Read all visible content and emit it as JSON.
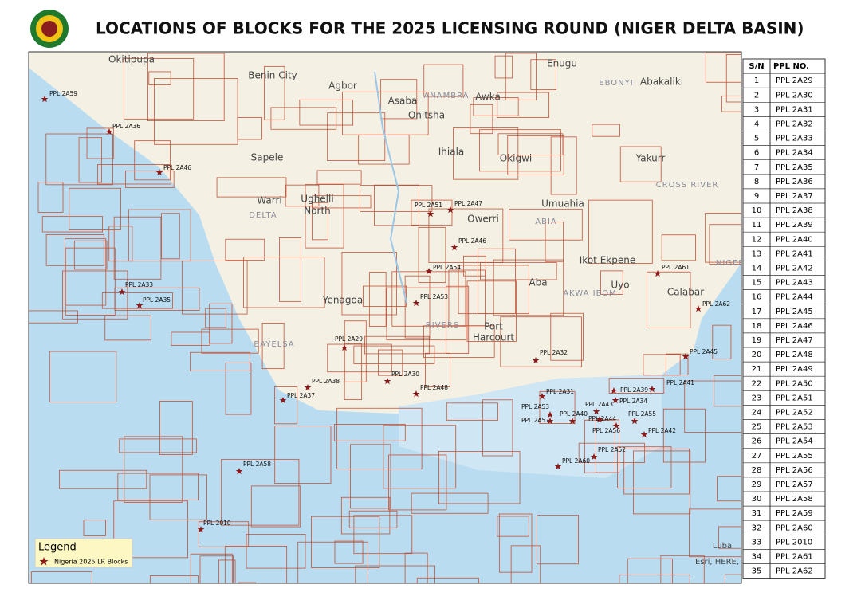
{
  "header": {
    "title": "LOCATIONS OF BLOCKS FOR THE 2025 LICENSING ROUND (NIGER DELTA BASIN)"
  },
  "map": {
    "places": [
      "Okitipupa",
      "Benin City",
      "Agbor",
      "Asaba",
      "Onitsha",
      "Awka",
      "Enugu",
      "Abakaliki",
      "Sapele",
      "Warri",
      "Ughelli",
      "North",
      "Ihiala",
      "Okigwi",
      "Yakurr",
      "Owerri",
      "Umuahia",
      "Ikot Ekpene",
      "Uyo",
      "Calabar",
      "Aba",
      "Yenagoa",
      "Port",
      "Harcourt",
      "DELTA",
      "CROSS RIVER",
      "RIVERS",
      "ABIA",
      "AKWA IBOM",
      "ANAMBRA",
      "EBONYI",
      "BAYELSA",
      "NIGERIA",
      "Luba",
      "Esri, HERE, G"
    ],
    "blocks": [
      "PPL 2A59",
      "PPL 2A36",
      "PPL 2A46",
      "PPL 2A51",
      "PPL 2A47",
      "PPL 2A46",
      "PPL 2A54",
      "PPL 2A33",
      "PPL 2A35",
      "PPL 2A53",
      "PPL 2A29",
      "PPL 2A32",
      "PPL 2A30",
      "PPL 2A38",
      "PPL 2A37",
      "PPL 2A48",
      "PPL 2A31",
      "PPL 2A39",
      "PPL 2A34",
      "PPL 2A41",
      "PPL 2A43",
      "PPL 2A53",
      "PPL 2A40",
      "PPL 2A57",
      "PPL 2A44",
      "PPL 2A55",
      "PPL 2A56",
      "PPL 2A42",
      "PPL 2A52",
      "PPL 2A60",
      "PPL 2A58",
      "PPL 2010",
      "PPL 2A61",
      "PPL 2A62",
      "PPL 2A45"
    ],
    "legend": {
      "title": "Legend",
      "item": "Nigeria 2025 LR Blocks"
    }
  },
  "table": {
    "columns": [
      "S/N",
      "PPL NO."
    ],
    "rows": [
      [
        "1",
        "PPL 2A29"
      ],
      [
        "2",
        "PPL 2A30"
      ],
      [
        "3",
        "PPL 2A31"
      ],
      [
        "4",
        "PPL 2A32"
      ],
      [
        "5",
        "PPL 2A33"
      ],
      [
        "6",
        "PPL 2A34"
      ],
      [
        "7",
        "PPL 2A35"
      ],
      [
        "8",
        "PPL 2A36"
      ],
      [
        "9",
        "PPL 2A37"
      ],
      [
        "10",
        "PPL 2A38"
      ],
      [
        "11",
        "PPL 2A39"
      ],
      [
        "12",
        "PPL 2A40"
      ],
      [
        "13",
        "PPL 2A41"
      ],
      [
        "14",
        "PPL 2A42"
      ],
      [
        "15",
        "PPL 2A43"
      ],
      [
        "16",
        "PPL 2A44"
      ],
      [
        "17",
        "PPL 2A45"
      ],
      [
        "18",
        "PPL 2A46"
      ],
      [
        "19",
        "PPL 2A47"
      ],
      [
        "20",
        "PPL 2A48"
      ],
      [
        "21",
        "PPL 2A49"
      ],
      [
        "22",
        "PPL 2A50"
      ],
      [
        "23",
        "PPL 2A51"
      ],
      [
        "24",
        "PPL 2A52"
      ],
      [
        "25",
        "PPL 2A53"
      ],
      [
        "26",
        "PPL 2A54"
      ],
      [
        "27",
        "PPL 2A55"
      ],
      [
        "28",
        "PPL 2A56"
      ],
      [
        "29",
        "PPL 2A57"
      ],
      [
        "30",
        "PPL 2A58"
      ],
      [
        "31",
        "PPL 2A59"
      ],
      [
        "32",
        "PPL 2A60"
      ],
      [
        "33",
        "PPL 2010"
      ],
      [
        "34",
        "PPL 2A61"
      ],
      [
        "35",
        "PPL 2A62"
      ]
    ]
  }
}
